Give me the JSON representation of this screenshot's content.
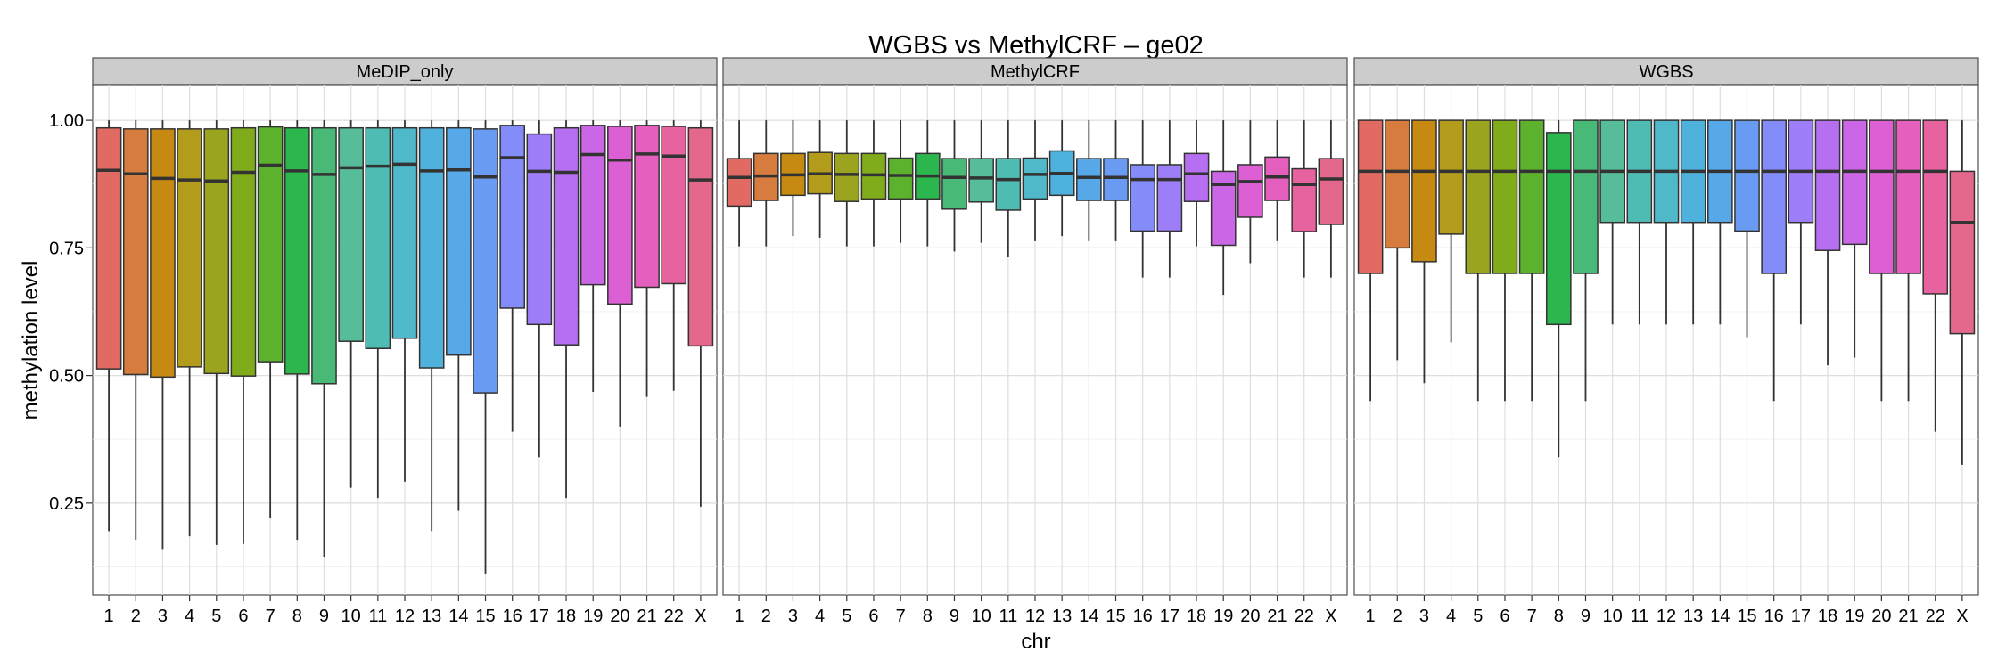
{
  "chart_data": {
    "type": "boxplot",
    "title": "WGBS vs MethylCRF – ge02",
    "xlabel": "chr",
    "ylabel": "methylation level",
    "ylim": [
      0.07,
      1.07
    ],
    "yticks": [
      0.25,
      0.5,
      0.75,
      1.0
    ],
    "ytick_labels": [
      "0.25",
      "0.50",
      "0.75",
      "1.00"
    ],
    "grid": true,
    "legend": "none",
    "categories": [
      "1",
      "2",
      "3",
      "4",
      "5",
      "6",
      "7",
      "8",
      "9",
      "10",
      "11",
      "12",
      "13",
      "14",
      "15",
      "16",
      "17",
      "18",
      "19",
      "20",
      "21",
      "22",
      "X"
    ],
    "colors": [
      "#E16A62",
      "#D67C3E",
      "#C68A12",
      "#B39B1B",
      "#9BA41E",
      "#80AC1B",
      "#5DB22D",
      "#2CB64E",
      "#48B977",
      "#57BC99",
      "#4FBCB3",
      "#4FB9C9",
      "#4FB2DC",
      "#57A8E9",
      "#6A9BF3",
      "#838CF8",
      "#9E7DF8",
      "#B76FF2",
      "#CB66E6",
      "#DC60D3",
      "#E45FBE",
      "#E6639F",
      "#E3688B"
    ],
    "panels": [
      {
        "name": "MeDIP_only",
        "boxes": [
          {
            "lower": 0.195,
            "q1": 0.513,
            "median": 0.902,
            "q3": 0.985,
            "upper": 1.0
          },
          {
            "lower": 0.178,
            "q1": 0.502,
            "median": 0.895,
            "q3": 0.983,
            "upper": 1.0
          },
          {
            "lower": 0.16,
            "q1": 0.497,
            "median": 0.886,
            "q3": 0.983,
            "upper": 1.0
          },
          {
            "lower": 0.185,
            "q1": 0.517,
            "median": 0.883,
            "q3": 0.983,
            "upper": 1.0
          },
          {
            "lower": 0.168,
            "q1": 0.504,
            "median": 0.881,
            "q3": 0.983,
            "upper": 1.0
          },
          {
            "lower": 0.17,
            "q1": 0.499,
            "median": 0.898,
            "q3": 0.985,
            "upper": 1.0
          },
          {
            "lower": 0.22,
            "q1": 0.527,
            "median": 0.912,
            "q3": 0.987,
            "upper": 1.0
          },
          {
            "lower": 0.178,
            "q1": 0.503,
            "median": 0.901,
            "q3": 0.985,
            "upper": 1.0
          },
          {
            "lower": 0.145,
            "q1": 0.484,
            "median": 0.894,
            "q3": 0.985,
            "upper": 1.0
          },
          {
            "lower": 0.28,
            "q1": 0.567,
            "median": 0.907,
            "q3": 0.985,
            "upper": 1.0
          },
          {
            "lower": 0.26,
            "q1": 0.553,
            "median": 0.91,
            "q3": 0.985,
            "upper": 1.0
          },
          {
            "lower": 0.292,
            "q1": 0.573,
            "median": 0.914,
            "q3": 0.985,
            "upper": 1.0
          },
          {
            "lower": 0.195,
            "q1": 0.515,
            "median": 0.901,
            "q3": 0.985,
            "upper": 1.0
          },
          {
            "lower": 0.235,
            "q1": 0.54,
            "median": 0.903,
            "q3": 0.985,
            "upper": 1.0
          },
          {
            "lower": 0.112,
            "q1": 0.466,
            "median": 0.889,
            "q3": 0.983,
            "upper": 1.0
          },
          {
            "lower": 0.39,
            "q1": 0.632,
            "median": 0.927,
            "q3": 0.99,
            "upper": 1.0
          },
          {
            "lower": 0.34,
            "q1": 0.6,
            "median": 0.9,
            "q3": 0.973,
            "upper": 1.0
          },
          {
            "lower": 0.26,
            "q1": 0.56,
            "median": 0.898,
            "q3": 0.985,
            "upper": 1.0
          },
          {
            "lower": 0.468,
            "q1": 0.678,
            "median": 0.933,
            "q3": 0.99,
            "upper": 1.0
          },
          {
            "lower": 0.4,
            "q1": 0.64,
            "median": 0.922,
            "q3": 0.988,
            "upper": 1.0
          },
          {
            "lower": 0.458,
            "q1": 0.673,
            "median": 0.934,
            "q3": 0.99,
            "upper": 1.0
          },
          {
            "lower": 0.47,
            "q1": 0.68,
            "median": 0.93,
            "q3": 0.988,
            "upper": 1.0
          },
          {
            "lower": 0.243,
            "q1": 0.558,
            "median": 0.883,
            "q3": 0.985,
            "upper": 1.0
          }
        ]
      },
      {
        "name": "MethylCRF",
        "boxes": [
          {
            "lower": 0.753,
            "q1": 0.832,
            "median": 0.888,
            "q3": 0.925,
            "upper": 1.0
          },
          {
            "lower": 0.753,
            "q1": 0.843,
            "median": 0.891,
            "q3": 0.935,
            "upper": 1.0
          },
          {
            "lower": 0.773,
            "q1": 0.853,
            "median": 0.893,
            "q3": 0.935,
            "upper": 1.0
          },
          {
            "lower": 0.77,
            "q1": 0.856,
            "median": 0.895,
            "q3": 0.937,
            "upper": 1.0
          },
          {
            "lower": 0.753,
            "q1": 0.841,
            "median": 0.894,
            "q3": 0.935,
            "upper": 1.0
          },
          {
            "lower": 0.753,
            "q1": 0.846,
            "median": 0.893,
            "q3": 0.935,
            "upper": 1.0
          },
          {
            "lower": 0.76,
            "q1": 0.846,
            "median": 0.892,
            "q3": 0.926,
            "upper": 1.0
          },
          {
            "lower": 0.753,
            "q1": 0.846,
            "median": 0.891,
            "q3": 0.935,
            "upper": 1.0
          },
          {
            "lower": 0.743,
            "q1": 0.826,
            "median": 0.888,
            "q3": 0.925,
            "upper": 1.0
          },
          {
            "lower": 0.76,
            "q1": 0.84,
            "median": 0.887,
            "q3": 0.925,
            "upper": 1.0
          },
          {
            "lower": 0.733,
            "q1": 0.824,
            "median": 0.884,
            "q3": 0.925,
            "upper": 1.0
          },
          {
            "lower": 0.763,
            "q1": 0.846,
            "median": 0.894,
            "q3": 0.926,
            "upper": 1.0
          },
          {
            "lower": 0.773,
            "q1": 0.853,
            "median": 0.896,
            "q3": 0.94,
            "upper": 1.0
          },
          {
            "lower": 0.763,
            "q1": 0.843,
            "median": 0.888,
            "q3": 0.925,
            "upper": 1.0
          },
          {
            "lower": 0.763,
            "q1": 0.843,
            "median": 0.888,
            "q3": 0.925,
            "upper": 1.0
          },
          {
            "lower": 0.692,
            "q1": 0.783,
            "median": 0.884,
            "q3": 0.913,
            "upper": 1.0
          },
          {
            "lower": 0.692,
            "q1": 0.783,
            "median": 0.884,
            "q3": 0.913,
            "upper": 1.0
          },
          {
            "lower": 0.753,
            "q1": 0.841,
            "median": 0.895,
            "q3": 0.935,
            "upper": 1.0
          },
          {
            "lower": 0.658,
            "q1": 0.755,
            "median": 0.874,
            "q3": 0.9,
            "upper": 1.0
          },
          {
            "lower": 0.72,
            "q1": 0.81,
            "median": 0.88,
            "q3": 0.913,
            "upper": 1.0
          },
          {
            "lower": 0.763,
            "q1": 0.843,
            "median": 0.889,
            "q3": 0.928,
            "upper": 1.0
          },
          {
            "lower": 0.692,
            "q1": 0.782,
            "median": 0.874,
            "q3": 0.905,
            "upper": 1.0
          },
          {
            "lower": 0.692,
            "q1": 0.796,
            "median": 0.885,
            "q3": 0.925,
            "upper": 1.0
          }
        ]
      },
      {
        "name": "WGBS",
        "boxes": [
          {
            "lower": 0.45,
            "q1": 0.7,
            "median": 0.9,
            "q3": 1.0,
            "upper": 1.0
          },
          {
            "lower": 0.53,
            "q1": 0.75,
            "median": 0.9,
            "q3": 1.0,
            "upper": 1.0
          },
          {
            "lower": 0.485,
            "q1": 0.723,
            "median": 0.9,
            "q3": 1.0,
            "upper": 1.0
          },
          {
            "lower": 0.565,
            "q1": 0.777,
            "median": 0.9,
            "q3": 1.0,
            "upper": 1.0
          },
          {
            "lower": 0.45,
            "q1": 0.7,
            "median": 0.9,
            "q3": 1.0,
            "upper": 1.0
          },
          {
            "lower": 0.45,
            "q1": 0.7,
            "median": 0.9,
            "q3": 1.0,
            "upper": 1.0
          },
          {
            "lower": 0.45,
            "q1": 0.7,
            "median": 0.9,
            "q3": 1.0,
            "upper": 1.0
          },
          {
            "lower": 0.34,
            "q1": 0.6,
            "median": 0.9,
            "q3": 0.976,
            "upper": 1.0
          },
          {
            "lower": 0.45,
            "q1": 0.7,
            "median": 0.9,
            "q3": 1.0,
            "upper": 1.0
          },
          {
            "lower": 0.6,
            "q1": 0.8,
            "median": 0.9,
            "q3": 1.0,
            "upper": 1.0
          },
          {
            "lower": 0.6,
            "q1": 0.8,
            "median": 0.9,
            "q3": 1.0,
            "upper": 1.0
          },
          {
            "lower": 0.6,
            "q1": 0.8,
            "median": 0.9,
            "q3": 1.0,
            "upper": 1.0
          },
          {
            "lower": 0.6,
            "q1": 0.8,
            "median": 0.9,
            "q3": 1.0,
            "upper": 1.0
          },
          {
            "lower": 0.6,
            "q1": 0.8,
            "median": 0.9,
            "q3": 1.0,
            "upper": 1.0
          },
          {
            "lower": 0.575,
            "q1": 0.783,
            "median": 0.9,
            "q3": 1.0,
            "upper": 1.0
          },
          {
            "lower": 0.45,
            "q1": 0.7,
            "median": 0.9,
            "q3": 1.0,
            "upper": 1.0
          },
          {
            "lower": 0.6,
            "q1": 0.8,
            "median": 0.9,
            "q3": 1.0,
            "upper": 1.0
          },
          {
            "lower": 0.52,
            "q1": 0.745,
            "median": 0.9,
            "q3": 1.0,
            "upper": 1.0
          },
          {
            "lower": 0.535,
            "q1": 0.757,
            "median": 0.9,
            "q3": 1.0,
            "upper": 1.0
          },
          {
            "lower": 0.45,
            "q1": 0.7,
            "median": 0.9,
            "q3": 1.0,
            "upper": 1.0
          },
          {
            "lower": 0.45,
            "q1": 0.7,
            "median": 0.9,
            "q3": 1.0,
            "upper": 1.0
          },
          {
            "lower": 0.39,
            "q1": 0.66,
            "median": 0.9,
            "q3": 1.0,
            "upper": 1.0
          },
          {
            "lower": 0.325,
            "q1": 0.582,
            "median": 0.8,
            "q3": 0.9,
            "upper": 1.0
          }
        ]
      }
    ]
  }
}
